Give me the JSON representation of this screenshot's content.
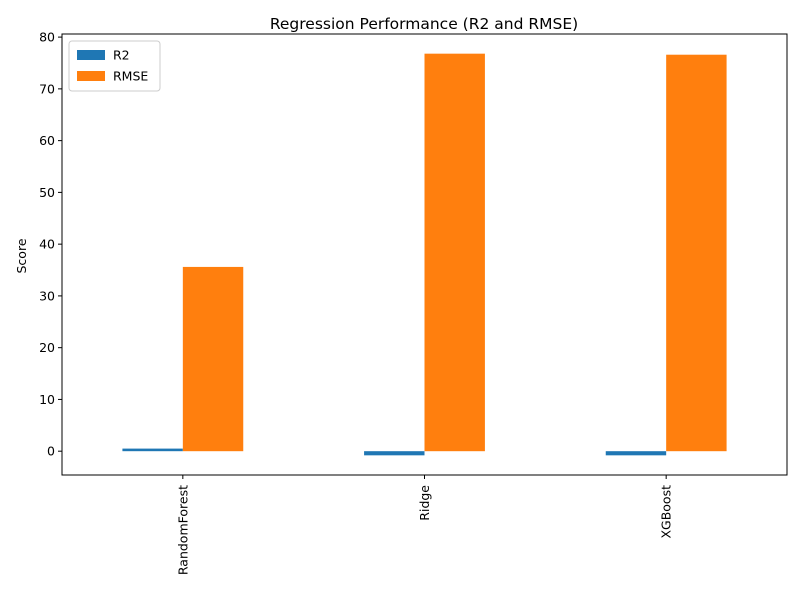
{
  "chart_data": {
    "type": "bar",
    "title": "Regression Performance (R2 and RMSE)",
    "xlabel": "",
    "ylabel": "Score",
    "categories": [
      "RandomForest",
      "Ridge",
      "XGBoost"
    ],
    "series": [
      {
        "name": "R2",
        "color": "#1f77b4",
        "values": [
          0.5,
          -0.8,
          -0.8
        ]
      },
      {
        "name": "RMSE",
        "color": "#ff7f0e",
        "values": [
          35.6,
          76.8,
          76.6
        ]
      }
    ],
    "ylim": [
      -4.6,
      80.6
    ],
    "yticks": [
      "0",
      "10",
      "20",
      "30",
      "40",
      "50",
      "60",
      "70",
      "80"
    ],
    "grid": false,
    "legend_position": "top-left"
  }
}
